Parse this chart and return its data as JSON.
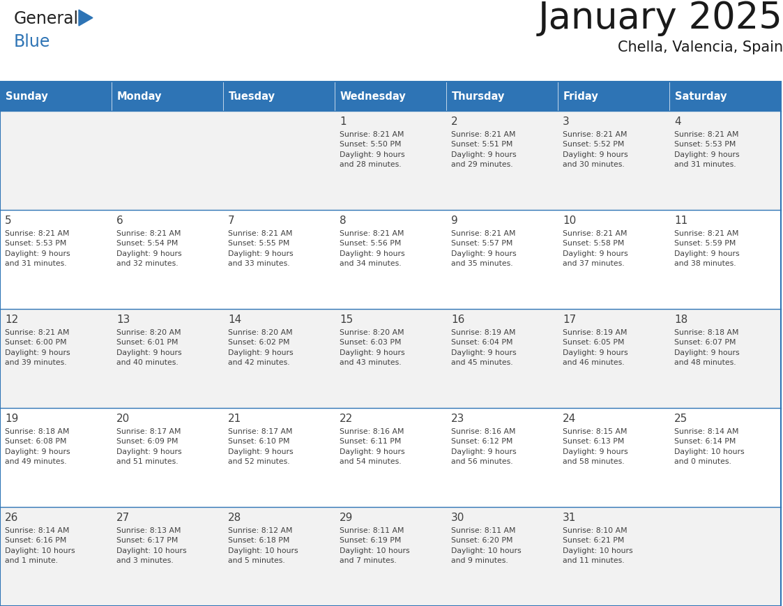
{
  "title": "January 2025",
  "subtitle": "Chella, Valencia, Spain",
  "header_bg": "#2E74B5",
  "header_text": "#FFFFFF",
  "cell_bg_odd": "#F2F2F2",
  "cell_bg_even": "#FFFFFF",
  "border_color": "#2E74B5",
  "text_color": "#404040",
  "logo_general_color": "#222222",
  "logo_blue_color": "#2E74B5",
  "logo_triangle_color": "#2E74B5",
  "days_of_week": [
    "Sunday",
    "Monday",
    "Tuesday",
    "Wednesday",
    "Thursday",
    "Friday",
    "Saturday"
  ],
  "weeks": [
    [
      {
        "day": "",
        "info": ""
      },
      {
        "day": "",
        "info": ""
      },
      {
        "day": "",
        "info": ""
      },
      {
        "day": "1",
        "info": "Sunrise: 8:21 AM\nSunset: 5:50 PM\nDaylight: 9 hours\nand 28 minutes."
      },
      {
        "day": "2",
        "info": "Sunrise: 8:21 AM\nSunset: 5:51 PM\nDaylight: 9 hours\nand 29 minutes."
      },
      {
        "day": "3",
        "info": "Sunrise: 8:21 AM\nSunset: 5:52 PM\nDaylight: 9 hours\nand 30 minutes."
      },
      {
        "day": "4",
        "info": "Sunrise: 8:21 AM\nSunset: 5:53 PM\nDaylight: 9 hours\nand 31 minutes."
      }
    ],
    [
      {
        "day": "5",
        "info": "Sunrise: 8:21 AM\nSunset: 5:53 PM\nDaylight: 9 hours\nand 31 minutes."
      },
      {
        "day": "6",
        "info": "Sunrise: 8:21 AM\nSunset: 5:54 PM\nDaylight: 9 hours\nand 32 minutes."
      },
      {
        "day": "7",
        "info": "Sunrise: 8:21 AM\nSunset: 5:55 PM\nDaylight: 9 hours\nand 33 minutes."
      },
      {
        "day": "8",
        "info": "Sunrise: 8:21 AM\nSunset: 5:56 PM\nDaylight: 9 hours\nand 34 minutes."
      },
      {
        "day": "9",
        "info": "Sunrise: 8:21 AM\nSunset: 5:57 PM\nDaylight: 9 hours\nand 35 minutes."
      },
      {
        "day": "10",
        "info": "Sunrise: 8:21 AM\nSunset: 5:58 PM\nDaylight: 9 hours\nand 37 minutes."
      },
      {
        "day": "11",
        "info": "Sunrise: 8:21 AM\nSunset: 5:59 PM\nDaylight: 9 hours\nand 38 minutes."
      }
    ],
    [
      {
        "day": "12",
        "info": "Sunrise: 8:21 AM\nSunset: 6:00 PM\nDaylight: 9 hours\nand 39 minutes."
      },
      {
        "day": "13",
        "info": "Sunrise: 8:20 AM\nSunset: 6:01 PM\nDaylight: 9 hours\nand 40 minutes."
      },
      {
        "day": "14",
        "info": "Sunrise: 8:20 AM\nSunset: 6:02 PM\nDaylight: 9 hours\nand 42 minutes."
      },
      {
        "day": "15",
        "info": "Sunrise: 8:20 AM\nSunset: 6:03 PM\nDaylight: 9 hours\nand 43 minutes."
      },
      {
        "day": "16",
        "info": "Sunrise: 8:19 AM\nSunset: 6:04 PM\nDaylight: 9 hours\nand 45 minutes."
      },
      {
        "day": "17",
        "info": "Sunrise: 8:19 AM\nSunset: 6:05 PM\nDaylight: 9 hours\nand 46 minutes."
      },
      {
        "day": "18",
        "info": "Sunrise: 8:18 AM\nSunset: 6:07 PM\nDaylight: 9 hours\nand 48 minutes."
      }
    ],
    [
      {
        "day": "19",
        "info": "Sunrise: 8:18 AM\nSunset: 6:08 PM\nDaylight: 9 hours\nand 49 minutes."
      },
      {
        "day": "20",
        "info": "Sunrise: 8:17 AM\nSunset: 6:09 PM\nDaylight: 9 hours\nand 51 minutes."
      },
      {
        "day": "21",
        "info": "Sunrise: 8:17 AM\nSunset: 6:10 PM\nDaylight: 9 hours\nand 52 minutes."
      },
      {
        "day": "22",
        "info": "Sunrise: 8:16 AM\nSunset: 6:11 PM\nDaylight: 9 hours\nand 54 minutes."
      },
      {
        "day": "23",
        "info": "Sunrise: 8:16 AM\nSunset: 6:12 PM\nDaylight: 9 hours\nand 56 minutes."
      },
      {
        "day": "24",
        "info": "Sunrise: 8:15 AM\nSunset: 6:13 PM\nDaylight: 9 hours\nand 58 minutes."
      },
      {
        "day": "25",
        "info": "Sunrise: 8:14 AM\nSunset: 6:14 PM\nDaylight: 10 hours\nand 0 minutes."
      }
    ],
    [
      {
        "day": "26",
        "info": "Sunrise: 8:14 AM\nSunset: 6:16 PM\nDaylight: 10 hours\nand 1 minute."
      },
      {
        "day": "27",
        "info": "Sunrise: 8:13 AM\nSunset: 6:17 PM\nDaylight: 10 hours\nand 3 minutes."
      },
      {
        "day": "28",
        "info": "Sunrise: 8:12 AM\nSunset: 6:18 PM\nDaylight: 10 hours\nand 5 minutes."
      },
      {
        "day": "29",
        "info": "Sunrise: 8:11 AM\nSunset: 6:19 PM\nDaylight: 10 hours\nand 7 minutes."
      },
      {
        "day": "30",
        "info": "Sunrise: 8:11 AM\nSunset: 6:20 PM\nDaylight: 10 hours\nand 9 minutes."
      },
      {
        "day": "31",
        "info": "Sunrise: 8:10 AM\nSunset: 6:21 PM\nDaylight: 10 hours\nand 11 minutes."
      },
      {
        "day": "",
        "info": ""
      }
    ]
  ]
}
